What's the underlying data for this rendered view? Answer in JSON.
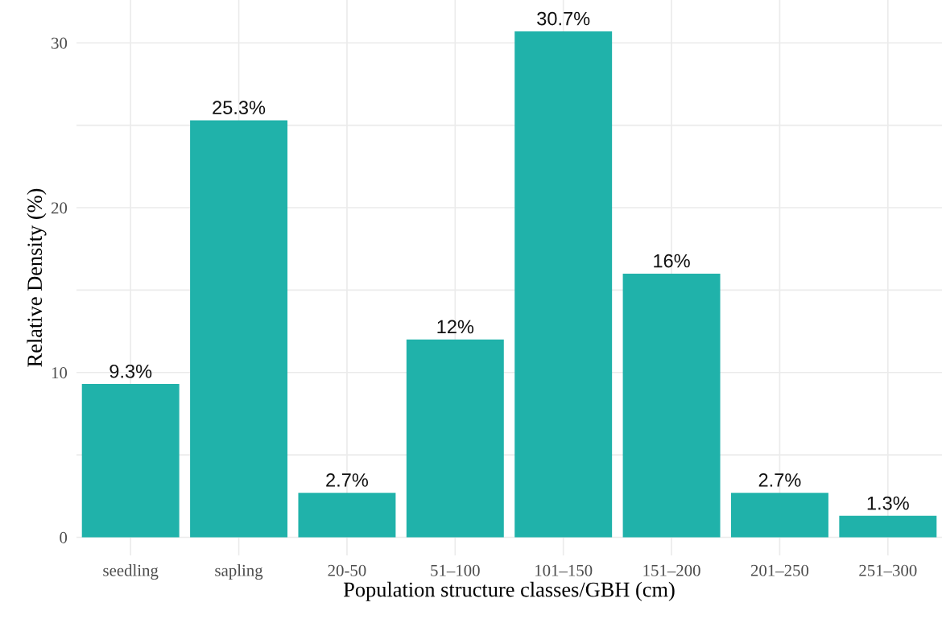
{
  "chart_data": {
    "type": "bar",
    "xlabel": "Population structure classes/GBH (cm)",
    "ylabel": "Relative Density (%)",
    "categories": [
      "seedling",
      "sapling",
      "20-50",
      "51–100",
      "101–150",
      "151–200",
      "201–250",
      "251–300"
    ],
    "values": [
      9.3,
      25.3,
      2.7,
      12,
      30.7,
      16,
      2.7,
      1.3
    ],
    "value_labels": [
      "9.3%",
      "25.3%",
      "2.7%",
      "12%",
      "30.7%",
      "16%",
      "2.7%",
      "1.3%"
    ],
    "color": "#20b2aa",
    "ylim": [
      -1.1,
      32.6
    ],
    "yticks": [
      0,
      {
        "value": 5,
        "label": null
      },
      10,
      {
        "value": 15,
        "label": null
      },
      20,
      {
        "value": 25,
        "label": null
      },
      30
    ],
    "grid": true
  }
}
